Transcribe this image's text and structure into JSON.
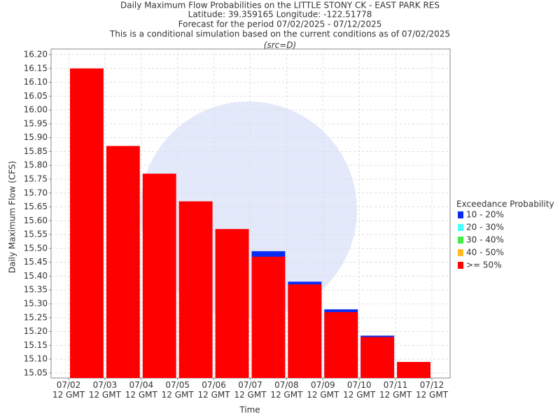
{
  "chart_data": {
    "type": "bar",
    "title": [
      "Daily Maximum Flow Probabilities on the LITTLE STONY CK - EAST PARK RES",
      "Latitude: 39.359165 Longitude: -122.51778",
      "Forecast for the period 07/02/2025 - 07/12/2025",
      "This is a conditional simulation based on the current conditions as of 07/02/2025"
    ],
    "subtitle": "(src=D)",
    "x_label": "Time",
    "y_label": "Daily Maximum Flow (CFS)",
    "legend_title": "Exceedance Probability",
    "categories": [
      "07/02\n12 GMT",
      "07/03\n12 GMT",
      "07/04\n12 GMT",
      "07/05\n12 GMT",
      "07/06\n12 GMT",
      "07/07\n12 GMT",
      "07/08\n12 GMT",
      "07/09\n12 GMT",
      "07/10\n12 GMT",
      "07/11\n12 GMT",
      "07/12\n12 GMT"
    ],
    "series": [
      {
        "name": "10 - 20%",
        "color": "#0a2cf0",
        "values": [
          null,
          null,
          null,
          null,
          null,
          15.49,
          15.38,
          15.28,
          15.185,
          null,
          null
        ]
      },
      {
        "name": "20 - 30%",
        "color": "#44ffff",
        "values": [
          null,
          null,
          null,
          null,
          null,
          null,
          null,
          null,
          null,
          null,
          null
        ]
      },
      {
        "name": "30 - 40%",
        "color": "#44ee44",
        "values": [
          null,
          null,
          null,
          null,
          null,
          null,
          null,
          null,
          null,
          null,
          null
        ]
      },
      {
        "name": "40 - 50%",
        "color": "#ffbb22",
        "values": [
          null,
          null,
          null,
          null,
          null,
          null,
          null,
          null,
          null,
          null,
          null
        ]
      },
      {
        "name": ">= 50%",
        "color": "#ff0000",
        "values": [
          16.15,
          15.87,
          15.77,
          15.67,
          15.57,
          15.47,
          15.37,
          15.27,
          15.18,
          15.09,
          null
        ]
      }
    ],
    "ylim": [
      15.032,
      16.2
    ],
    "yticks": [
      15.05,
      {
        "value": 15.1,
        "label": "15.10"
      },
      15.15,
      {
        "value": 15.2,
        "label": "15.20"
      },
      15.25,
      {
        "value": 15.3,
        "label": "15.30"
      },
      15.35,
      {
        "value": 15.4,
        "label": "15.40"
      },
      15.45,
      {
        "value": 15.5,
        "label": "15.50"
      },
      15.55,
      {
        "value": 15.6,
        "label": "15.60"
      },
      15.65,
      {
        "value": 15.7,
        "label": "15.70"
      },
      15.75,
      {
        "value": 15.8,
        "label": "15.80"
      },
      15.85,
      {
        "value": 15.9,
        "label": "15.90"
      },
      15.95,
      {
        "value": 16.0,
        "label": "16.00"
      },
      16.05,
      {
        "value": 16.1,
        "label": "16.10"
      },
      16.15,
      {
        "value": 16.2,
        "label": "16.20"
      }
    ],
    "grid": true
  }
}
